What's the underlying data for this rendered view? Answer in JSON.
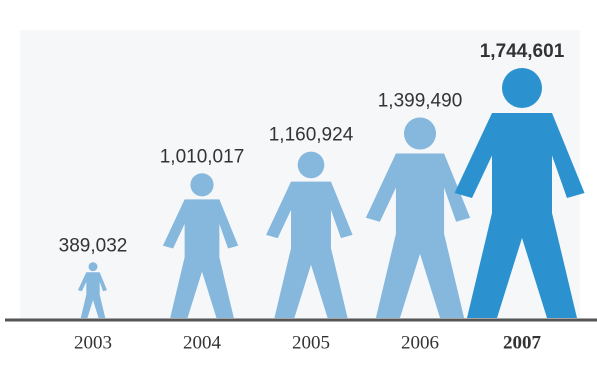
{
  "chart_data": {
    "type": "pictograph",
    "categories": [
      "2003",
      "2004",
      "2005",
      "2006",
      "2007"
    ],
    "values": [
      389032,
      1010017,
      1160924,
      1399490,
      1744601
    ],
    "value_labels": [
      "389,032",
      "1,010,017",
      "1,160,924",
      "1,399,490",
      "1,744,601"
    ],
    "colors": [
      "#86b7dd",
      "#86b7dd",
      "#86b7dd",
      "#86b7dd",
      "#2b92cf"
    ]
  }
}
